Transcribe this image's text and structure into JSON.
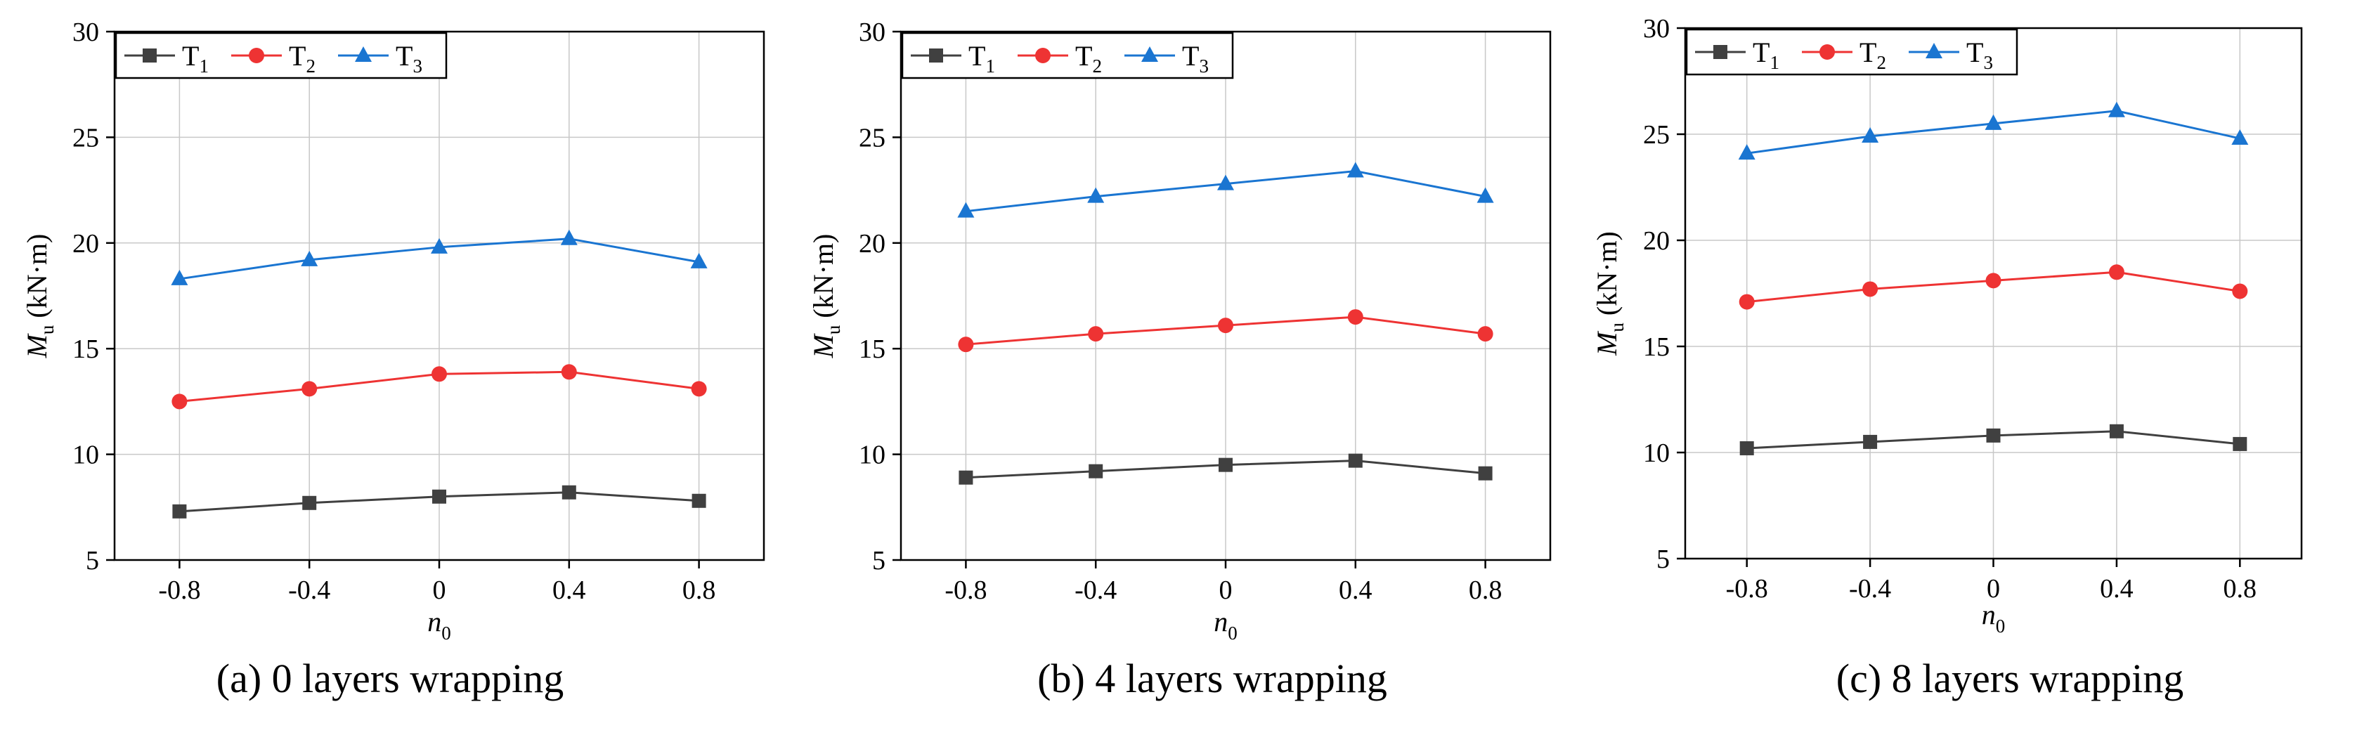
{
  "figure": {
    "series_colors": {
      "T1": "#404040",
      "T2": "#ee3333",
      "T3": "#1a75d1"
    }
  },
  "chart_data": [
    {
      "type": "line",
      "title": "",
      "caption": "(a) 0 layers wrapping",
      "xlabel": "n0",
      "xlabel_main": "n",
      "xlabel_sub": "0",
      "ylabel": "Mu (kN·m)",
      "ylabel_main": "M",
      "ylabel_sub": "u",
      "ylabel_unit": " (kN·m)",
      "x": [
        -0.8,
        -0.4,
        0,
        0.4,
        0.8
      ],
      "x_tick_labels": [
        "-0.8",
        "-0.4",
        "0",
        "0.4",
        "0.8"
      ],
      "xlim": [
        -1.0,
        1.0
      ],
      "ylim": [
        5,
        30
      ],
      "y_ticks": [
        5,
        10,
        15,
        20,
        25,
        30
      ],
      "y_tick_labels": [
        "5",
        "10",
        "15",
        "20",
        "25",
        "30"
      ],
      "grid": true,
      "legend_position": "top-left",
      "series": [
        {
          "name": "T1",
          "label_main": "T",
          "label_sub": "1",
          "marker": "square",
          "color": "#404040",
          "values": [
            7.3,
            7.7,
            8.0,
            8.2,
            7.8
          ]
        },
        {
          "name": "T2",
          "label_main": "T",
          "label_sub": "2",
          "marker": "circle",
          "color": "#ee3333",
          "values": [
            12.5,
            13.1,
            13.8,
            13.9,
            13.1
          ]
        },
        {
          "name": "T3",
          "label_main": "T",
          "label_sub": "3",
          "marker": "triangle",
          "color": "#1a75d1",
          "values": [
            18.3,
            19.2,
            19.8,
            20.2,
            19.1
          ]
        }
      ]
    },
    {
      "type": "line",
      "title": "",
      "caption": "(b) 4 layers wrapping",
      "xlabel": "n0",
      "xlabel_main": "n",
      "xlabel_sub": "0",
      "ylabel": "Mu (kN·m)",
      "ylabel_main": "M",
      "ylabel_sub": "u",
      "ylabel_unit": " (kN·m)",
      "x": [
        -0.8,
        -0.4,
        0,
        0.4,
        0.8
      ],
      "x_tick_labels": [
        "-0.8",
        "-0.4",
        "0",
        "0.4",
        "0.8"
      ],
      "xlim": [
        -1.0,
        1.0
      ],
      "ylim": [
        5,
        30
      ],
      "y_ticks": [
        5,
        10,
        15,
        20,
        25,
        30
      ],
      "y_tick_labels": [
        "5",
        "10",
        "15",
        "20",
        "25",
        "30"
      ],
      "grid": true,
      "legend_position": "top-left",
      "series": [
        {
          "name": "T1",
          "label_main": "T",
          "label_sub": "1",
          "marker": "square",
          "color": "#404040",
          "values": [
            8.9,
            9.2,
            9.5,
            9.7,
            9.1
          ]
        },
        {
          "name": "T2",
          "label_main": "T",
          "label_sub": "2",
          "marker": "circle",
          "color": "#ee3333",
          "values": [
            15.2,
            15.7,
            16.1,
            16.5,
            15.7
          ]
        },
        {
          "name": "T3",
          "label_main": "T",
          "label_sub": "3",
          "marker": "triangle",
          "color": "#1a75d1",
          "values": [
            21.5,
            22.2,
            22.8,
            23.4,
            22.2
          ]
        }
      ]
    },
    {
      "type": "line",
      "title": "",
      "caption": "(c) 8 layers wrapping",
      "xlabel": "n0",
      "xlabel_main": "n",
      "xlabel_sub": "0",
      "ylabel": "Mu (kN·m)",
      "ylabel_main": "M",
      "ylabel_sub": "u",
      "ylabel_unit": " (kN·m)",
      "x": [
        -0.8,
        -0.4,
        0,
        0.4,
        0.8
      ],
      "x_tick_labels": [
        "-0.8",
        "-0.4",
        "0",
        "0.4",
        "0.8"
      ],
      "xlim": [
        -1.0,
        1.0
      ],
      "ylim": [
        5,
        30
      ],
      "y_ticks": [
        5,
        10,
        15,
        20,
        25,
        30
      ],
      "y_tick_labels": [
        "5",
        "10",
        "15",
        "20",
        "25",
        "30"
      ],
      "grid": true,
      "legend_position": "top-left",
      "series": [
        {
          "name": "T1",
          "label_main": "T",
          "label_sub": "1",
          "marker": "square",
          "color": "#404040",
          "values": [
            10.2,
            10.5,
            10.8,
            11.0,
            10.4
          ]
        },
        {
          "name": "T2",
          "label_main": "T",
          "label_sub": "2",
          "marker": "circle",
          "color": "#ee3333",
          "values": [
            17.1,
            17.7,
            18.1,
            18.5,
            17.6
          ]
        },
        {
          "name": "T3",
          "label_main": "T",
          "label_sub": "3",
          "marker": "triangle",
          "color": "#1a75d1",
          "values": [
            24.1,
            24.9,
            25.5,
            26.1,
            24.8
          ]
        }
      ]
    }
  ]
}
